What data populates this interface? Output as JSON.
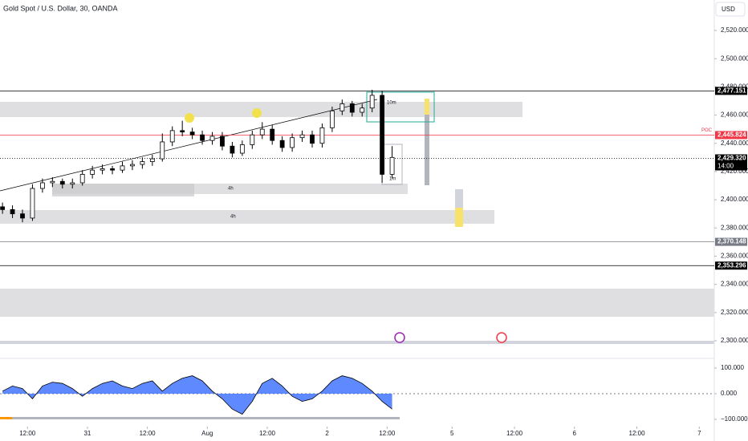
{
  "chart_data": {
    "type": "candlestick",
    "title": "Gold Spot / U.S. Dollar, 30, OANDA",
    "currency": "USD",
    "up_color": "#ffffff",
    "down_color": "#000000",
    "x": [
      -10,
      -6,
      -2,
      2,
      6,
      10,
      14,
      18,
      22,
      26,
      30,
      34,
      38,
      42,
      46,
      50,
      54,
      58,
      62,
      66,
      70,
      74,
      78,
      82,
      86,
      90,
      94,
      98,
      102,
      106,
      110,
      114,
      118,
      122,
      126,
      130,
      134,
      138,
      142,
      146
    ],
    "open": [
      2395,
      2393,
      2390,
      2387,
      2408,
      2412,
      2413,
      2411,
      2412,
      2418,
      2421,
      2422,
      2421,
      2424,
      2425,
      2427,
      2429,
      2441,
      2449,
      2448,
      2446,
      2442,
      2445,
      2438,
      2433,
      2439,
      2446,
      2450,
      2442,
      2437,
      2444,
      2446,
      2440,
      2451,
      2463,
      2468,
      2462,
      2465,
      2474,
      2418
    ],
    "high": [
      2398,
      2396,
      2393,
      2411,
      2415,
      2416,
      2415,
      2415,
      2421,
      2424,
      2425,
      2424,
      2427,
      2428,
      2430,
      2432,
      2447,
      2452,
      2456,
      2451,
      2449,
      2448,
      2448,
      2441,
      2442,
      2449,
      2455,
      2453,
      2445,
      2447,
      2449,
      2449,
      2454,
      2466,
      2471,
      2470,
      2468,
      2478,
      2477,
      2438
    ],
    "low": [
      2390,
      2387,
      2384,
      2385,
      2405,
      2409,
      2408,
      2408,
      2410,
      2415,
      2418,
      2418,
      2419,
      2421,
      2422,
      2424,
      2427,
      2438,
      2445,
      2443,
      2439,
      2439,
      2435,
      2430,
      2431,
      2436,
      2443,
      2439,
      2434,
      2434,
      2441,
      2437,
      2437,
      2448,
      2460,
      2459,
      2459,
      2462,
      2412,
      2415
    ],
    "close": [
      2393,
      2390,
      2387,
      2408,
      2412,
      2413,
      2411,
      2412,
      2418,
      2421,
      2422,
      2421,
      2424,
      2425,
      2427,
      2429,
      2441,
      2449,
      2448,
      2446,
      2442,
      2445,
      2438,
      2433,
      2439,
      2446,
      2450,
      2442,
      2437,
      2444,
      2446,
      2440,
      2451,
      2463,
      2468,
      2462,
      2465,
      2474,
      2418,
      2430
    ],
    "xlim": [
      -11,
      275
    ],
    "xticks": [
      {
        "value": 0,
        "label": "12:00"
      },
      {
        "value": 24,
        "label": "31"
      },
      {
        "value": 48,
        "label": "12:00"
      },
      {
        "value": 72,
        "label": "Aug"
      },
      {
        "value": 96,
        "label": "12:00"
      },
      {
        "value": 120,
        "label": "2"
      },
      {
        "value": 144,
        "label": "12:00"
      },
      {
        "value": 170,
        "label": "5"
      },
      {
        "value": 195,
        "label": "12:00"
      },
      {
        "value": 219,
        "label": "6"
      },
      {
        "value": 244,
        "label": "12:00"
      },
      {
        "value": 269,
        "label": "7"
      }
    ],
    "ylim": [
      2290,
      2540
    ],
    "yticks": [
      {
        "value": 2300,
        "label": "2,300.000"
      },
      {
        "value": 2320,
        "label": "2,320.000"
      },
      {
        "value": 2340,
        "label": "2,340.000"
      },
      {
        "value": 2360,
        "label": "2,360.000"
      },
      {
        "value": 2380,
        "label": "2,380.000"
      },
      {
        "value": 2400,
        "label": "2,400.000"
      },
      {
        "value": 2420,
        "label": "2,420.000"
      },
      {
        "value": 2440,
        "label": "2,440.000"
      },
      {
        "value": 2460,
        "label": "2,460.000"
      },
      {
        "value": 2480,
        "label": "2,480.000"
      },
      {
        "value": 2500,
        "label": "2,500.000"
      },
      {
        "value": 2520,
        "label": "2,520.000"
      }
    ],
    "price_lines": [
      {
        "value": 2477.151,
        "label": "2,477.151",
        "color": "#000000"
      },
      {
        "value": 2445.824,
        "label": "2,445.824",
        "color": "#f23645",
        "name": "POC"
      },
      {
        "value": 2429.32,
        "label": "2,429.320",
        "color": "#000000",
        "countdown": "14:00"
      },
      {
        "value": 2370.148,
        "label": "2,370.148",
        "color": "#787b86"
      },
      {
        "value": 2353.296,
        "label": "2,353.296",
        "color": "#000000"
      }
    ],
    "zone_labels": [
      "10m",
      "4h",
      "4h",
      "1m"
    ],
    "indicator": {
      "type": "area",
      "color": "#2962ff",
      "values": [
        10,
        30,
        20,
        -20,
        30,
        45,
        40,
        20,
        -10,
        20,
        40,
        50,
        30,
        20,
        40,
        50,
        10,
        40,
        60,
        70,
        50,
        10,
        -20,
        -60,
        -80,
        -30,
        40,
        60,
        30,
        -10,
        -30,
        -20,
        10,
        50,
        70,
        60,
        40,
        10,
        -30,
        -60
      ],
      "ylim": [
        -120,
        120
      ],
      "yticks": [
        {
          "value": 100,
          "label": "100.000"
        },
        {
          "value": 0,
          "label": "0.000"
        },
        {
          "value": -100,
          "label": "−100.000"
        }
      ]
    }
  }
}
